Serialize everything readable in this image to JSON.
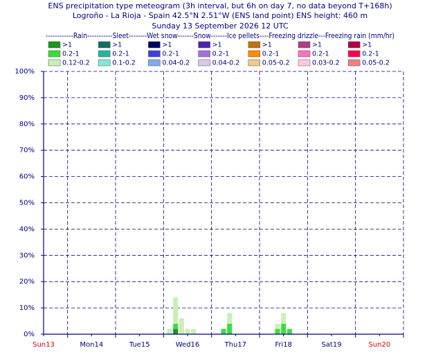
{
  "chart_data": {
    "type": "bar",
    "title": "ENS precipitation type meteogram (3h interval, but 6h on day 7, no data beyond T+168h)",
    "subtitle": "Logroño - La Rioja - Spain 42.5°N 2.51°W (ENS land point) ENS height: 460 m",
    "date_line": "Sunday 13 September 2026 12 UTC",
    "legend_header": "------------Rain-----------Sleet--------Wet snow-------Snow-------Ice pellets----Freezing drizzle---Freezing rain (mm/hr)",
    "x": [
      63,
      66,
      69,
      72,
      75,
      90,
      93,
      117,
      120,
      123
    ],
    "xlim": [
      0,
      180
    ],
    "xticks": [
      {
        "value": 0,
        "label": "Sun13"
      },
      {
        "value": 24,
        "label": "Mon14"
      },
      {
        "value": 48,
        "label": "Tue15"
      },
      {
        "value": 72,
        "label": "Wed16"
      },
      {
        "value": 96,
        "label": "Thu17"
      },
      {
        "value": 120,
        "label": "Fri18"
      },
      {
        "value": 144,
        "label": "Sat19"
      },
      {
        "value": 168,
        "label": "Sun20"
      }
    ],
    "xtick_label_colors": [
      "#e00000",
      "#000080",
      "#000080",
      "#000080",
      "#000080",
      "#000080",
      "#000080",
      "#e00000"
    ],
    "xgrid": [
      12,
      36,
      60,
      84,
      108,
      132,
      156,
      180
    ],
    "ylim": [
      0,
      100
    ],
    "yticks": [
      {
        "value": 0,
        "label": "0%"
      },
      {
        "value": 10,
        "label": "10%"
      },
      {
        "value": 20,
        "label": "20%"
      },
      {
        "value": 30,
        "label": "30%"
      },
      {
        "value": 40,
        "label": "40%"
      },
      {
        "value": 50,
        "label": "50%"
      },
      {
        "value": 60,
        "label": "60%"
      },
      {
        "value": 70,
        "label": "70%"
      },
      {
        "value": 80,
        "label": "80%"
      },
      {
        "value": 90,
        "label": "90%"
      },
      {
        "value": 100,
        "label": "100%"
      }
    ],
    "grid": true,
    "stacked": true,
    "series": [
      {
        "name": ">1",
        "color": "#1a961a",
        "values": [
          null,
          2,
          null,
          null,
          null,
          null,
          null,
          null,
          null,
          null
        ]
      },
      {
        "name": "0.2-1",
        "color": "#3ddc3d",
        "values": [
          null,
          2,
          null,
          null,
          null,
          2,
          4,
          2,
          4,
          2
        ]
      },
      {
        "name": "0.12-0.2",
        "color": "#c8f0b4",
        "values": [
          2,
          10,
          6,
          2,
          2,
          null,
          4,
          2,
          4,
          null
        ]
      },
      {
        "name": ">1",
        "color": "#107060",
        "values": [
          null,
          null,
          null,
          null,
          null,
          null,
          null,
          null,
          null,
          null
        ]
      },
      {
        "name": "0.2-1",
        "color": "#20b8a0",
        "values": [
          null,
          null,
          null,
          null,
          null,
          null,
          null,
          null,
          null,
          null
        ]
      },
      {
        "name": "0.1-0.2",
        "color": "#80e8d8",
        "values": [
          null,
          null,
          null,
          null,
          null,
          null,
          null,
          null,
          null,
          null
        ]
      },
      {
        "name": ">1",
        "color": "#000060",
        "values": [
          null,
          null,
          null,
          null,
          null,
          null,
          null,
          null,
          null,
          null
        ]
      },
      {
        "name": "0.2-1",
        "color": "#4040e0",
        "values": [
          null,
          null,
          null,
          null,
          null,
          null,
          null,
          null,
          null,
          null
        ]
      },
      {
        "name": "0.04-0.2",
        "color": "#80a8f0",
        "values": [
          null,
          null,
          null,
          null,
          null,
          null,
          null,
          null,
          null,
          null
        ]
      },
      {
        "name": ">1",
        "color": "#5020b0",
        "values": [
          null,
          null,
          null,
          null,
          null,
          null,
          null,
          null,
          null,
          null
        ]
      },
      {
        "name": "0.2-1",
        "color": "#a070e0",
        "values": [
          null,
          null,
          null,
          null,
          null,
          null,
          null,
          null,
          null,
          null
        ]
      },
      {
        "name": "0.04-0.2",
        "color": "#d8c8f0",
        "values": [
          null,
          null,
          null,
          null,
          null,
          null,
          null,
          null,
          null,
          null
        ]
      },
      {
        "name": ">1",
        "color": "#c07010",
        "values": [
          null,
          null,
          null,
          null,
          null,
          null,
          null,
          null,
          null,
          null
        ]
      },
      {
        "name": "0.2-1",
        "color": "#ff8c00",
        "values": [
          null,
          null,
          null,
          null,
          null,
          null,
          null,
          null,
          null,
          null
        ]
      },
      {
        "name": "0.05-0.2",
        "color": "#f0c890",
        "values": [
          null,
          null,
          null,
          null,
          null,
          null,
          null,
          null,
          null,
          null
        ]
      },
      {
        "name": ">1",
        "color": "#b04080",
        "values": [
          null,
          null,
          null,
          null,
          null,
          null,
          null,
          null,
          null,
          null
        ]
      },
      {
        "name": "0.2-1",
        "color": "#ff70c0",
        "values": [
          null,
          null,
          null,
          null,
          null,
          null,
          null,
          null,
          null,
          null
        ]
      },
      {
        "name": "0.03-0.2",
        "color": "#ffc8e0",
        "values": [
          null,
          null,
          null,
          null,
          null,
          null,
          null,
          null,
          null,
          null
        ]
      },
      {
        "name": ">1",
        "color": "#b00040",
        "values": [
          null,
          null,
          null,
          null,
          null,
          null,
          null,
          null,
          null,
          null
        ]
      },
      {
        "name": "0.2-1",
        "color": "#ff0050",
        "values": [
          null,
          null,
          null,
          null,
          null,
          null,
          null,
          null,
          null,
          null
        ]
      },
      {
        "name": "0.05-0.2",
        "color": "#f08080",
        "values": [
          null,
          null,
          null,
          null,
          null,
          null,
          null,
          null,
          null,
          null
        ]
      }
    ]
  }
}
